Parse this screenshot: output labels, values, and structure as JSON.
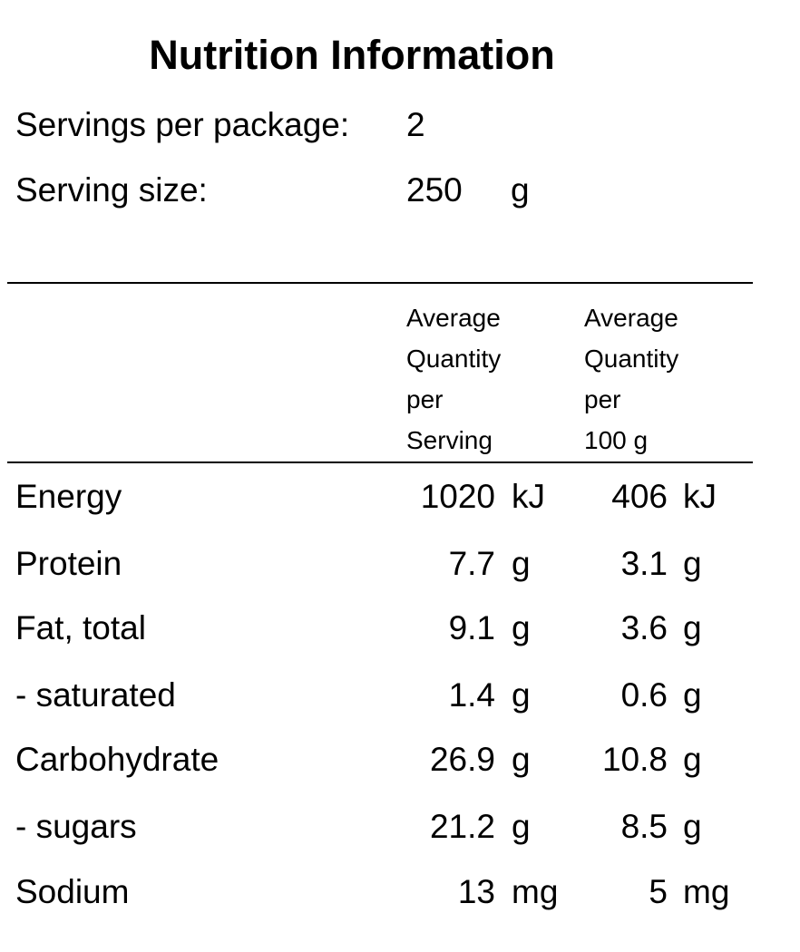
{
  "title": "Nutrition Information",
  "servings_per_package": {
    "label": "Servings per package:",
    "value": "2"
  },
  "serving_size": {
    "label": "Serving size:",
    "value": "250",
    "unit": "g"
  },
  "columns": {
    "per_serving": [
      "Average",
      "Quantity",
      "per",
      "Serving"
    ],
    "per_100g": [
      "Average",
      "Quantity",
      "per",
      "100 g"
    ]
  },
  "nutrients": [
    {
      "name": "Energy",
      "per_serving": "1020",
      "per_serving_unit": "kJ",
      "per_100g": "406",
      "per_100g_unit": "kJ"
    },
    {
      "name": "Protein",
      "per_serving": "7.7",
      "per_serving_unit": "g",
      "per_100g": "3.1",
      "per_100g_unit": "g"
    },
    {
      "name": "Fat, total",
      "per_serving": "9.1",
      "per_serving_unit": "g",
      "per_100g": "3.6",
      "per_100g_unit": "g"
    },
    {
      "name": "- saturated",
      "per_serving": "1.4",
      "per_serving_unit": "g",
      "per_100g": "0.6",
      "per_100g_unit": "g"
    },
    {
      "name": "Carbohydrate",
      "per_serving": "26.9",
      "per_serving_unit": "g",
      "per_100g": "10.8",
      "per_100g_unit": "g"
    },
    {
      "name": "- sugars",
      "per_serving": "21.2",
      "per_serving_unit": "g",
      "per_100g": "8.5",
      "per_100g_unit": "g"
    },
    {
      "name": "Sodium",
      "per_serving": "13",
      "per_serving_unit": "mg",
      "per_100g": "5",
      "per_100g_unit": "mg"
    }
  ]
}
